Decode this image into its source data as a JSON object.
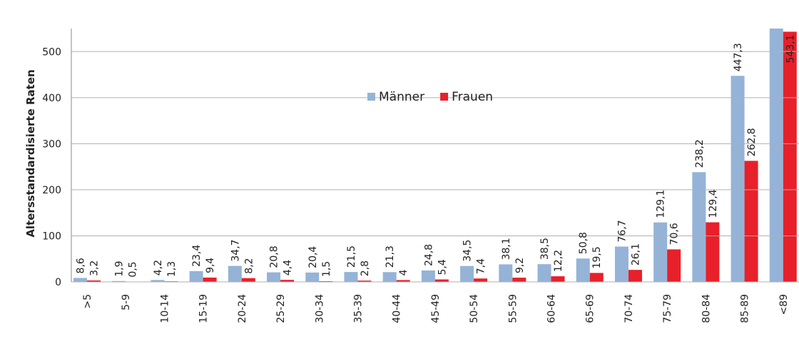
{
  "chart_data": {
    "type": "bar",
    "y_label": "Altersstandardisierte Raten",
    "categories": [
      ">5",
      "5-9",
      "10-14",
      "15-19",
      "20-24",
      "25-29",
      "30-34",
      "35-39",
      "40-44",
      "45-49",
      "50-54",
      "55-59",
      "60-64",
      "65-69",
      "70-74",
      "75-79",
      "80-84",
      "85-89",
      "<89"
    ],
    "series": [
      {
        "name": "Männer",
        "color": "#95b3d7",
        "values": [
          8.6,
          1.9,
          4.2,
          23.4,
          34.7,
          20.8,
          20.4,
          21.5,
          21.3,
          24.8,
          34.5,
          38.1,
          38.5,
          50.8,
          76.7,
          129.1,
          238.2,
          447.3,
          550
        ],
        "value_labels": [
          "8,6",
          "1,9",
          "4,2",
          "23,4",
          "34,7",
          "20,8",
          "20,4",
          "21,5",
          "21,3",
          "24,8",
          "34,5",
          "38,1",
          "38,5",
          "50,8",
          "76,7",
          "129,1",
          "238,2",
          "447,3",
          null
        ]
      },
      {
        "name": "Frauen",
        "color": "#e8202a",
        "values": [
          3.2,
          0.5,
          1.3,
          9.4,
          8.2,
          4.4,
          1.5,
          2.8,
          4,
          5.4,
          7.4,
          9.2,
          12.2,
          19.5,
          26.1,
          70.6,
          129.4,
          262.8,
          543.1
        ],
        "value_labels": [
          "3,2",
          "0,5",
          "1,3",
          "9,4",
          "8,2",
          "4,4",
          "1,5",
          "2,8",
          "4",
          "5,4",
          "7,4",
          "9,2",
          "12,2",
          "19,5",
          "26,1",
          "70,6",
          "129,4",
          "262,8",
          "543,1"
        ]
      }
    ],
    "ylim": [
      0,
      550
    ],
    "yticks": [
      0,
      100,
      200,
      300,
      400,
      500
    ],
    "grid": true,
    "legend": "top"
  }
}
